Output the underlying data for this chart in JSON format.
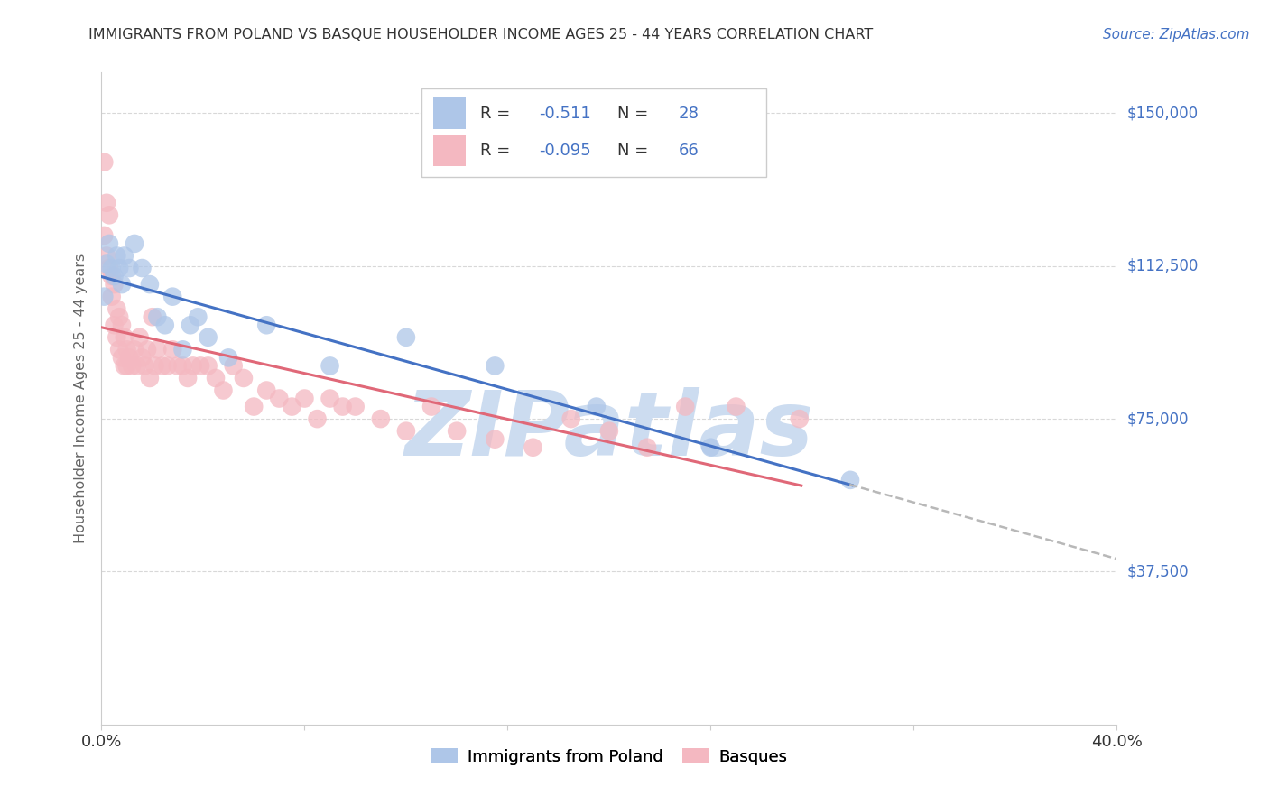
{
  "title": "IMMIGRANTS FROM POLAND VS BASQUE HOUSEHOLDER INCOME AGES 25 - 44 YEARS CORRELATION CHART",
  "source": "Source: ZipAtlas.com",
  "ylabel": "Householder Income Ages 25 - 44 years",
  "xlim": [
    0.0,
    0.4
  ],
  "ylim": [
    0,
    160000
  ],
  "yticks": [
    0,
    37500,
    75000,
    112500,
    150000
  ],
  "ytick_labels": [
    "",
    "$37,500",
    "$75,000",
    "$112,500",
    "$150,000"
  ],
  "xticks": [
    0.0,
    0.08,
    0.16,
    0.24,
    0.32,
    0.4
  ],
  "xtick_labels": [
    "0.0%",
    "",
    "",
    "",
    "",
    "40.0%"
  ],
  "R_poland": -0.511,
  "N_poland": 28,
  "R_basque": -0.095,
  "N_basque": 66,
  "poland_color": "#aec6e8",
  "basque_color": "#f4b8c1",
  "poland_line_color": "#4472c4",
  "basque_line_color": "#e06878",
  "dashed_line_color": "#b8b8b8",
  "grid_color": "#d8d8d8",
  "title_color": "#333333",
  "source_color": "#4472c4",
  "ylabel_color": "#666666",
  "ytick_color": "#4472c4",
  "watermark": "ZIPatlas",
  "watermark_color": "#ccdcf0",
  "poland_x": [
    0.001,
    0.002,
    0.003,
    0.004,
    0.005,
    0.006,
    0.007,
    0.008,
    0.009,
    0.011,
    0.013,
    0.016,
    0.019,
    0.022,
    0.025,
    0.028,
    0.032,
    0.035,
    0.038,
    0.042,
    0.05,
    0.065,
    0.09,
    0.12,
    0.155,
    0.195,
    0.24,
    0.295
  ],
  "poland_y": [
    105000,
    113000,
    118000,
    112000,
    110000,
    115000,
    112000,
    108000,
    115000,
    112000,
    118000,
    112000,
    108000,
    100000,
    98000,
    105000,
    92000,
    98000,
    100000,
    95000,
    90000,
    98000,
    88000,
    95000,
    88000,
    78000,
    68000,
    60000
  ],
  "basque_x": [
    0.001,
    0.001,
    0.002,
    0.002,
    0.003,
    0.003,
    0.004,
    0.004,
    0.005,
    0.005,
    0.006,
    0.006,
    0.007,
    0.007,
    0.008,
    0.008,
    0.009,
    0.009,
    0.01,
    0.01,
    0.011,
    0.012,
    0.013,
    0.014,
    0.015,
    0.016,
    0.017,
    0.018,
    0.019,
    0.02,
    0.021,
    0.022,
    0.024,
    0.026,
    0.028,
    0.03,
    0.032,
    0.034,
    0.036,
    0.039,
    0.042,
    0.045,
    0.048,
    0.052,
    0.056,
    0.06,
    0.065,
    0.07,
    0.075,
    0.08,
    0.085,
    0.09,
    0.095,
    0.1,
    0.11,
    0.12,
    0.13,
    0.14,
    0.155,
    0.17,
    0.185,
    0.2,
    0.215,
    0.23,
    0.25,
    0.275
  ],
  "basque_y": [
    138000,
    120000,
    128000,
    115000,
    125000,
    112000,
    110000,
    105000,
    108000,
    98000,
    102000,
    95000,
    100000,
    92000,
    98000,
    90000,
    95000,
    88000,
    92000,
    88000,
    90000,
    88000,
    92000,
    88000,
    95000,
    90000,
    88000,
    92000,
    85000,
    100000,
    88000,
    92000,
    88000,
    88000,
    92000,
    88000,
    88000,
    85000,
    88000,
    88000,
    88000,
    85000,
    82000,
    88000,
    85000,
    78000,
    82000,
    80000,
    78000,
    80000,
    75000,
    80000,
    78000,
    78000,
    75000,
    72000,
    78000,
    72000,
    70000,
    68000,
    75000,
    72000,
    68000,
    78000,
    78000,
    75000
  ]
}
